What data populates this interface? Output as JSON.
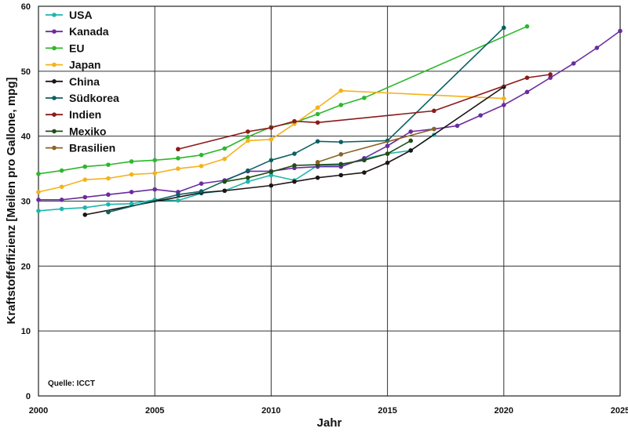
{
  "chart_data": {
    "type": "line",
    "xlabel": "Jahr",
    "ylabel": "Kraftstoffeffizienz [Meilen pro Gallone, mpg]",
    "xlim": [
      2000,
      2025
    ],
    "ylim": [
      0,
      60
    ],
    "x_ticks": [
      "2000",
      "2005",
      "2010",
      "2015",
      "2020",
      "2025"
    ],
    "y_ticks": [
      "0",
      "10",
      "20",
      "30",
      "40",
      "50",
      "60"
    ],
    "grid": true,
    "legend_position": "top-left",
    "annotation": "Quelle: ICCT",
    "series": [
      {
        "name": "USA",
        "color": "#1fb5ad",
        "points": [
          [
            2000,
            28.5
          ],
          [
            2001,
            28.8
          ],
          [
            2002,
            29.0
          ],
          [
            2003,
            29.5
          ],
          [
            2004,
            29.6
          ],
          [
            2005,
            30.2
          ],
          [
            2006,
            30.1
          ],
          [
            2007,
            31.2
          ],
          [
            2008,
            31.6
          ],
          [
            2009,
            33.0
          ],
          [
            2010,
            34.0
          ],
          [
            2011,
            33.2
          ],
          [
            2012,
            35.5
          ],
          [
            2013,
            35.5
          ],
          [
            2014,
            36.5
          ],
          [
            2015,
            37.3
          ],
          [
            2016,
            37.8
          ],
          [
            2017,
            40.2
          ]
        ]
      },
      {
        "name": "Kanada",
        "color": "#6a2c9e",
        "points": [
          [
            2000,
            30.2
          ],
          [
            2001,
            30.2
          ],
          [
            2002,
            30.6
          ],
          [
            2003,
            31.0
          ],
          [
            2004,
            31.4
          ],
          [
            2005,
            31.8
          ],
          [
            2006,
            31.4
          ],
          [
            2007,
            32.7
          ],
          [
            2008,
            33.2
          ],
          [
            2009,
            34.6
          ],
          [
            2010,
            34.6
          ],
          [
            2011,
            35.1
          ],
          [
            2012,
            35.3
          ],
          [
            2013,
            35.3
          ],
          [
            2014,
            36.6
          ],
          [
            2015,
            38.5
          ],
          [
            2016,
            40.7
          ],
          [
            2017,
            41.1
          ],
          [
            2018,
            41.6
          ],
          [
            2019,
            43.2
          ],
          [
            2020,
            44.8
          ],
          [
            2021,
            46.8
          ],
          [
            2022,
            49.0
          ],
          [
            2023,
            51.2
          ],
          [
            2024,
            53.6
          ],
          [
            2025,
            56.2
          ]
        ]
      },
      {
        "name": "EU",
        "color": "#2cb82c",
        "points": [
          [
            2000,
            34.2
          ],
          [
            2001,
            34.7
          ],
          [
            2002,
            35.3
          ],
          [
            2003,
            35.6
          ],
          [
            2004,
            36.1
          ],
          [
            2005,
            36.3
          ],
          [
            2006,
            36.6
          ],
          [
            2007,
            37.1
          ],
          [
            2008,
            38.1
          ],
          [
            2009,
            39.9
          ],
          [
            2010,
            41.4
          ],
          [
            2011,
            42.1
          ],
          [
            2012,
            43.4
          ],
          [
            2013,
            44.8
          ],
          [
            2014,
            45.9
          ],
          [
            2021,
            56.9
          ]
        ]
      },
      {
        "name": "Japan",
        "color": "#f5b21a",
        "points": [
          [
            2000,
            31.4
          ],
          [
            2001,
            32.2
          ],
          [
            2002,
            33.3
          ],
          [
            2003,
            33.5
          ],
          [
            2004,
            34.1
          ],
          [
            2005,
            34.3
          ],
          [
            2006,
            35.0
          ],
          [
            2007,
            35.4
          ],
          [
            2008,
            36.5
          ],
          [
            2009,
            39.3
          ],
          [
            2010,
            39.5
          ],
          [
            2011,
            41.9
          ],
          [
            2012,
            44.4
          ],
          [
            2013,
            47.0
          ],
          [
            2020,
            45.8
          ]
        ]
      },
      {
        "name": "China",
        "color": "#1e1414",
        "points": [
          [
            2002,
            27.9
          ],
          [
            2007,
            31.3
          ],
          [
            2008,
            31.6
          ],
          [
            2010,
            32.4
          ],
          [
            2011,
            33.0
          ],
          [
            2012,
            33.6
          ],
          [
            2013,
            34.0
          ],
          [
            2014,
            34.4
          ],
          [
            2015,
            35.9
          ],
          [
            2016,
            37.8
          ],
          [
            2020,
            47.6
          ]
        ]
      },
      {
        "name": "Südkorea",
        "color": "#0d5f62",
        "points": [
          [
            2003,
            28.3
          ],
          [
            2006,
            31.0
          ],
          [
            2007,
            31.5
          ],
          [
            2009,
            34.7
          ],
          [
            2010,
            36.3
          ],
          [
            2011,
            37.3
          ],
          [
            2012,
            39.2
          ],
          [
            2013,
            39.1
          ],
          [
            2015,
            39.3
          ],
          [
            2020,
            56.7
          ]
        ]
      },
      {
        "name": "Indien",
        "color": "#8b1a1a",
        "points": [
          [
            2006,
            38.0
          ],
          [
            2009,
            40.7
          ],
          [
            2010,
            41.3
          ],
          [
            2011,
            42.3
          ],
          [
            2012,
            42.1
          ],
          [
            2017,
            43.9
          ],
          [
            2021,
            49.0
          ],
          [
            2022,
            49.5
          ]
        ]
      },
      {
        "name": "Mexiko",
        "color": "#1f4d16",
        "points": [
          [
            2008,
            33.0
          ],
          [
            2009,
            33.6
          ],
          [
            2010,
            34.5
          ],
          [
            2011,
            35.5
          ],
          [
            2012,
            35.6
          ],
          [
            2013,
            35.7
          ],
          [
            2014,
            36.3
          ],
          [
            2015,
            37.3
          ],
          [
            2016,
            39.3
          ]
        ]
      },
      {
        "name": "Brasilien",
        "color": "#8b6423",
        "points": [
          [
            2012,
            36.0
          ],
          [
            2013,
            37.2
          ],
          [
            2017,
            41.1
          ]
        ]
      }
    ]
  }
}
